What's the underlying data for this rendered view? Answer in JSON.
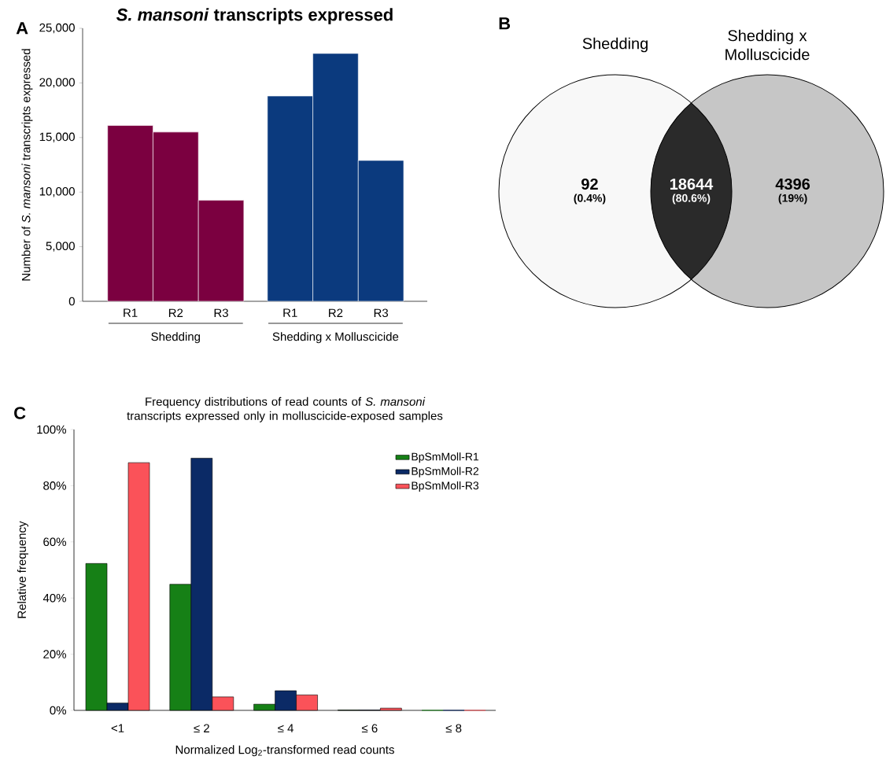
{
  "chart_data": [
    {
      "type": "bar",
      "title": "*S. mansoni* transcripts expressed",
      "ylabel": "Number of *S. mansoni* transcripts expressed",
      "annotations": [
        "A",
        "Shedding",
        "Shedding x Molluscicide"
      ],
      "categories": [
        "R1",
        "R2",
        "R3",
        "R1",
        "R2",
        "R3"
      ],
      "values": [
        16100,
        15500,
        9250,
        18800,
        22700,
        12900
      ],
      "colors": [
        "#7b0040",
        "#7b0040",
        "#7b0040",
        "#0b3a7e",
        "#0b3a7e",
        "#0b3a7e"
      ],
      "ylim": [
        0,
        25000
      ],
      "yticks": [
        {
          "value": 0,
          "label": "0"
        },
        {
          "value": 5000,
          "label": "5,000"
        },
        {
          "value": 10000,
          "label": "10,000"
        },
        {
          "value": 15000,
          "label": "15,000"
        },
        {
          "value": 20000,
          "label": "20,000"
        },
        {
          "value": 25000,
          "label": "25,000"
        }
      ]
    },
    {
      "type": "other",
      "annotations": [
        "B",
        "(0.4%)",
        "(80.6%)",
        "(19%)"
      ],
      "categories": [
        "Shedding",
        null,
        "Shedding x Molluscicide"
      ],
      "values": [
        92,
        18644,
        4396
      ],
      "colors": [
        "#f8f8f8",
        "#2a2a2a",
        "#c6c6c6"
      ],
      "data_labels": true
    },
    {
      "type": "bar",
      "title": "Frequency distributions of read counts of *S. mansoni* transcripts expressed only in molluscicide-exposed samples",
      "xlabel": "Normalized Log$_{2}$-transformed read counts",
      "ylabel": "Relative frequency",
      "annotations": [
        "C"
      ],
      "categories": [
        "<1",
        "≤ 2",
        "≤ 4",
        "≤ 6",
        "≤ 8"
      ],
      "series": [
        {
          "name": "BpSmMoll-R1",
          "color": "#168016",
          "values": [
            52.3,
            44.9,
            2.2,
            0.1,
            0
          ]
        },
        {
          "name": "BpSmMoll-R2",
          "color": "#0b2a66",
          "values": [
            2.6,
            89.8,
            7.0,
            0.1,
            0
          ]
        },
        {
          "name": "BpSmMoll-R3",
          "color": "#fb5259",
          "values": [
            88.2,
            4.8,
            5.5,
            0.8,
            0
          ]
        }
      ],
      "ylim": [
        0,
        100
      ],
      "yticks": [
        {
          "value": 0,
          "label": "0%"
        },
        {
          "value": 20,
          "label": "20%"
        },
        {
          "value": 40,
          "label": "40%"
        },
        {
          "value": 60,
          "label": "60%"
        },
        {
          "value": 80,
          "label": "80%"
        },
        {
          "value": 100,
          "label": "100%"
        }
      ],
      "legend": "top right"
    }
  ]
}
